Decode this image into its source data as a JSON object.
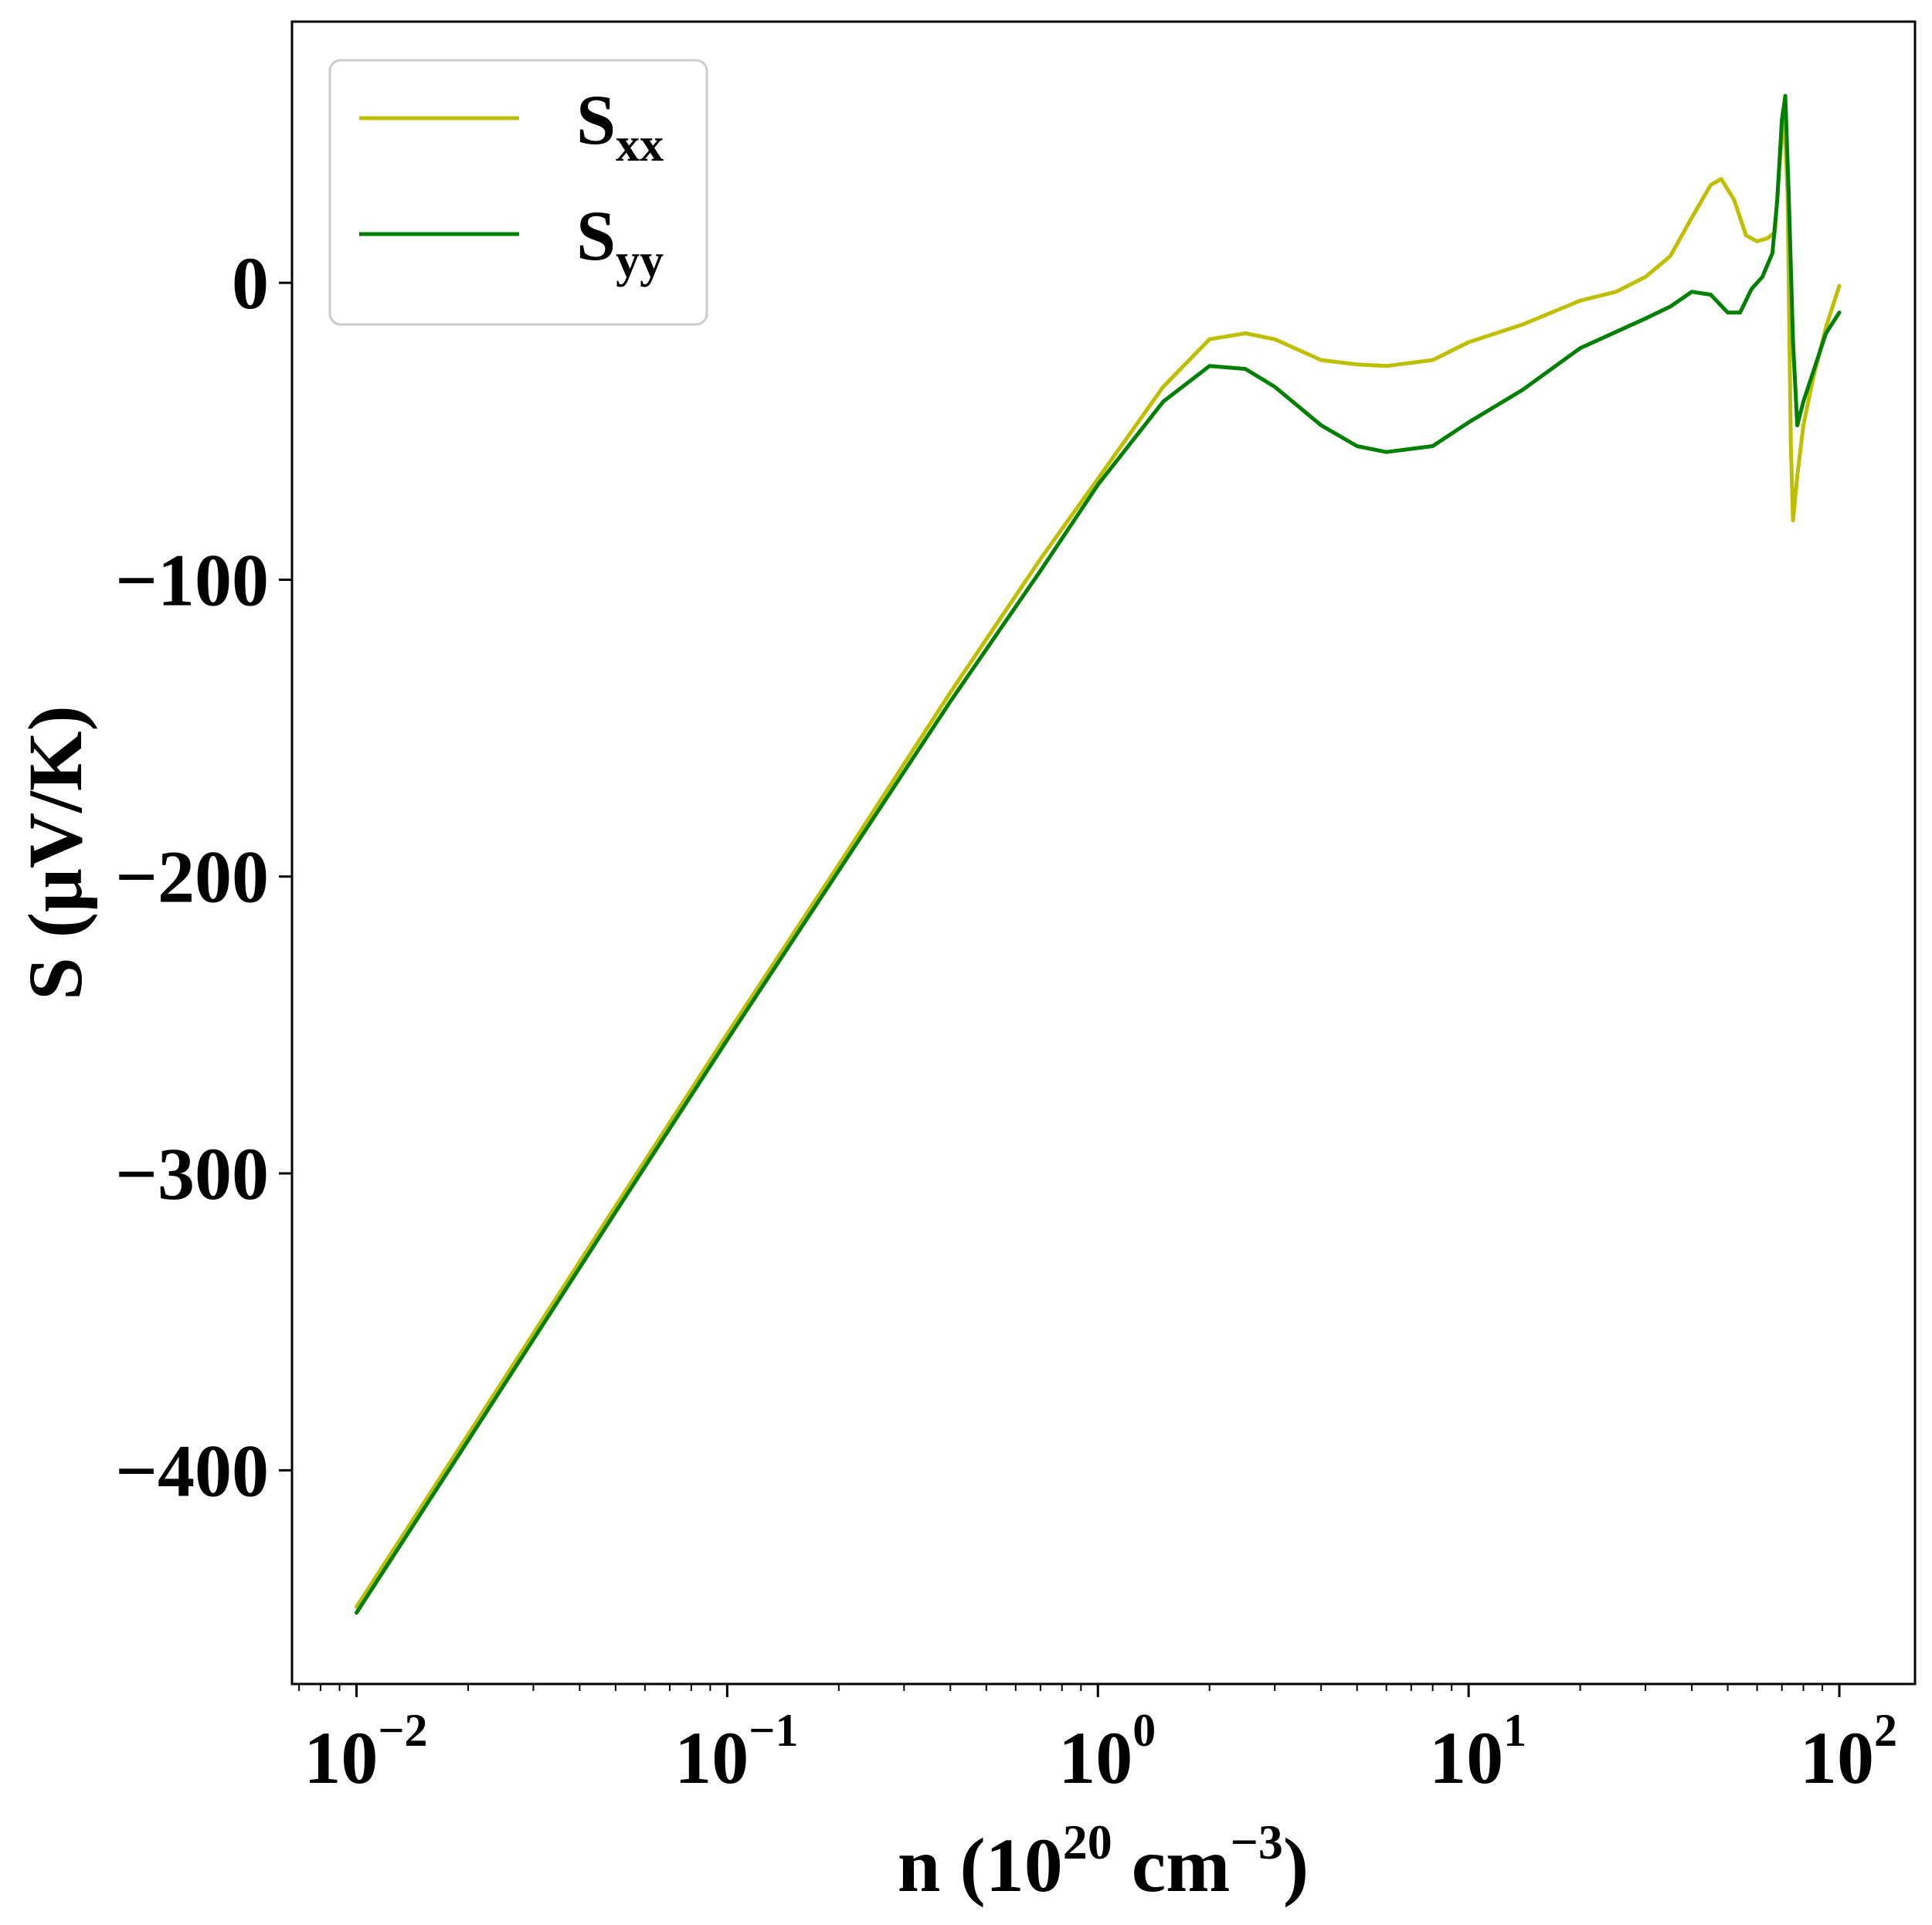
{
  "chart_data": {
    "type": "line",
    "title": "",
    "xlabel": {
      "base": "n (10",
      "sup1": "20",
      "mid": " cm",
      "sup2": "−3",
      "end": ")"
    },
    "ylabel": "S (μV/K)",
    "xscale": "log",
    "xlim": [
      0.0067,
      160
    ],
    "ylim": [
      -472,
      88
    ],
    "grid": false,
    "legend_position": "top-left",
    "x_ticks": [
      {
        "value": 0.01,
        "base": "10",
        "exp": "−2"
      },
      {
        "value": 0.1,
        "base": "10",
        "exp": "−1"
      },
      {
        "value": 1,
        "base": "10",
        "exp": "0"
      },
      {
        "value": 10,
        "base": "10",
        "exp": "1"
      },
      {
        "value": 100,
        "base": "10",
        "exp": "2"
      }
    ],
    "y_ticks": [
      {
        "value": 0,
        "label": "0"
      },
      {
        "value": -100,
        "label": "−100"
      },
      {
        "value": -200,
        "label": "−200"
      },
      {
        "value": -300,
        "label": "−300"
      },
      {
        "value": -400,
        "label": "−400"
      }
    ],
    "series": [
      {
        "name": "S",
        "name_sub": "xx",
        "color": "#bfbf00",
        "points": [
          [
            0.01,
            -446
          ],
          [
            0.02,
            -388
          ],
          [
            0.05,
            -311
          ],
          [
            0.1,
            -253
          ],
          [
            0.2,
            -196
          ],
          [
            0.4,
            -138
          ],
          [
            0.7,
            -93
          ],
          [
            1.0,
            -66
          ],
          [
            1.5,
            -35
          ],
          [
            2.0,
            -19
          ],
          [
            2.5,
            -17
          ],
          [
            3.0,
            -19
          ],
          [
            4.0,
            -26
          ],
          [
            5.0,
            -27.5
          ],
          [
            6.0,
            -28
          ],
          [
            8.0,
            -26
          ],
          [
            10.0,
            -20
          ],
          [
            14.0,
            -14
          ],
          [
            20.0,
            -6
          ],
          [
            25.0,
            -3
          ],
          [
            30.0,
            2
          ],
          [
            35.0,
            9
          ],
          [
            40.0,
            22
          ],
          [
            45.0,
            33
          ],
          [
            48.0,
            35
          ],
          [
            52.0,
            28
          ],
          [
            56.0,
            16
          ],
          [
            60.0,
            14
          ],
          [
            64.0,
            15
          ],
          [
            67.0,
            17
          ],
          [
            69.0,
            40
          ],
          [
            71.0,
            58
          ],
          [
            72.5,
            30
          ],
          [
            74.0,
            -55
          ],
          [
            75.0,
            -80
          ],
          [
            77.0,
            -65
          ],
          [
            80.0,
            -48
          ],
          [
            85.0,
            -32
          ],
          [
            92.0,
            -15
          ],
          [
            100.0,
            -1
          ]
        ]
      },
      {
        "name": "S",
        "name_sub": "yy",
        "color": "#008000",
        "points": [
          [
            0.01,
            -448
          ],
          [
            0.02,
            -390
          ],
          [
            0.05,
            -313
          ],
          [
            0.1,
            -255
          ],
          [
            0.2,
            -198
          ],
          [
            0.4,
            -141
          ],
          [
            0.7,
            -97
          ],
          [
            1.0,
            -68
          ],
          [
            1.5,
            -40
          ],
          [
            2.0,
            -28
          ],
          [
            2.5,
            -29
          ],
          [
            3.0,
            -35
          ],
          [
            4.0,
            -48
          ],
          [
            5.0,
            -55
          ],
          [
            6.0,
            -57
          ],
          [
            8.0,
            -55
          ],
          [
            10.0,
            -47
          ],
          [
            14.0,
            -36
          ],
          [
            20.0,
            -22
          ],
          [
            30.0,
            -12
          ],
          [
            35.0,
            -8
          ],
          [
            40.0,
            -3
          ],
          [
            45.0,
            -4
          ],
          [
            50.0,
            -10
          ],
          [
            54.0,
            -10
          ],
          [
            58.0,
            -2
          ],
          [
            62.0,
            2
          ],
          [
            66.0,
            10
          ],
          [
            68.0,
            28
          ],
          [
            70.0,
            55
          ],
          [
            71.5,
            63
          ],
          [
            73.0,
            30
          ],
          [
            75.0,
            -20
          ],
          [
            77.0,
            -48
          ],
          [
            80.0,
            -40
          ],
          [
            85.0,
            -30
          ],
          [
            92.0,
            -17
          ],
          [
            100.0,
            -10
          ]
        ]
      }
    ]
  }
}
